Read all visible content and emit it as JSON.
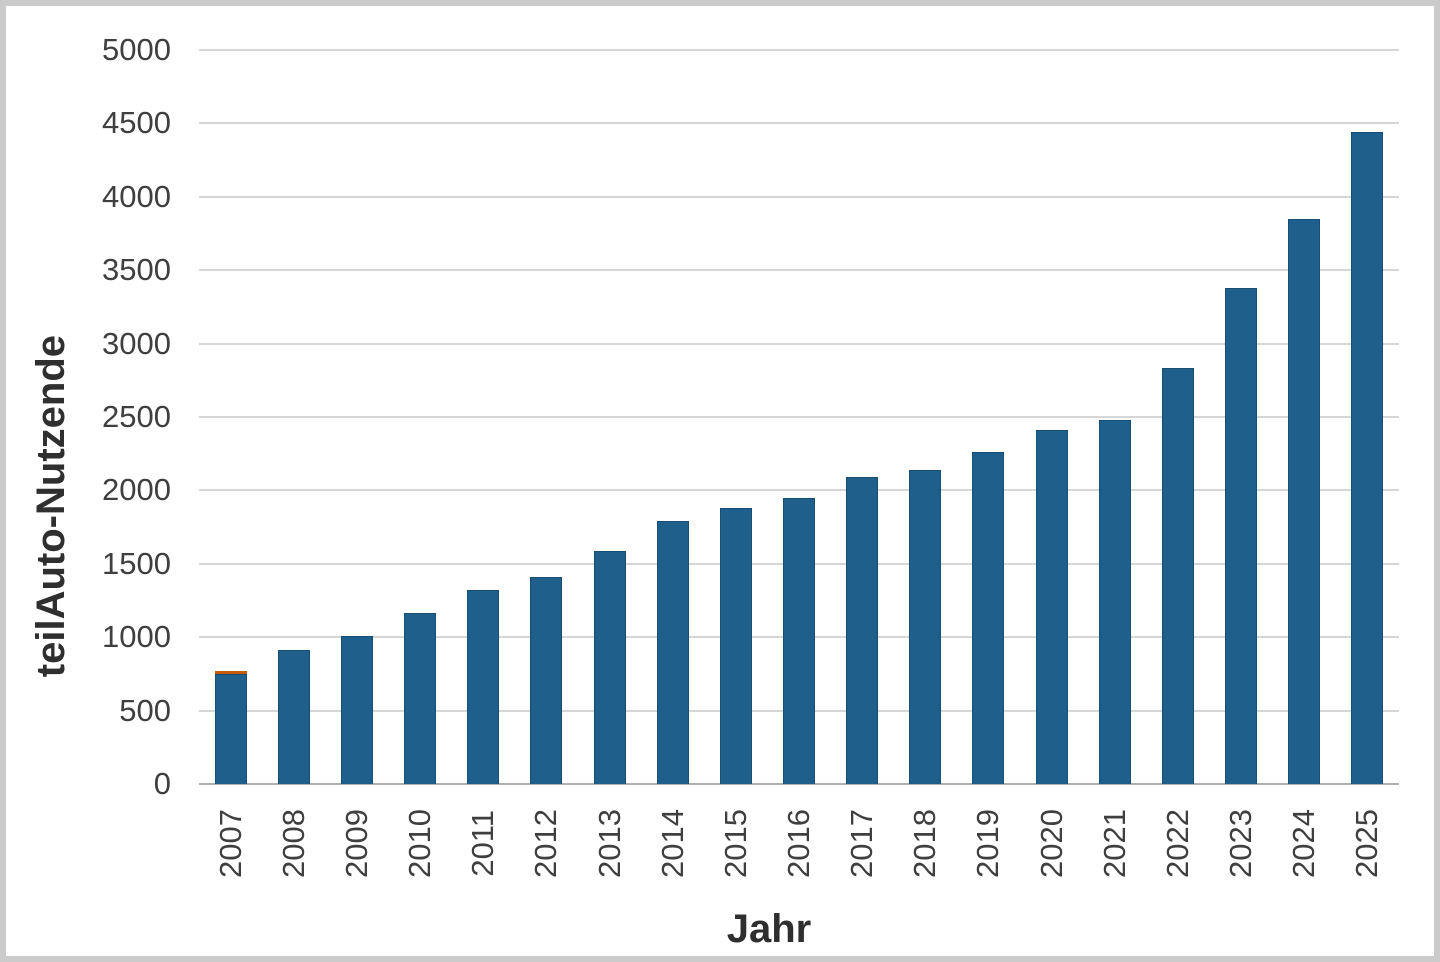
{
  "chart_data": {
    "type": "bar",
    "title": "",
    "xlabel": "Jahr",
    "ylabel": "teilAuto-Nutzende",
    "categories": [
      "2007",
      "2008",
      "2009",
      "2010",
      "2011",
      "2012",
      "2013",
      "2014",
      "2015",
      "2016",
      "2017",
      "2018",
      "2019",
      "2020",
      "2021",
      "2022",
      "2023",
      "2024",
      "2025"
    ],
    "series": [
      {
        "name": "primary",
        "color": "#1F5F8B",
        "values": [
          750,
          915,
          1010,
          1165,
          1320,
          1410,
          1590,
          1790,
          1880,
          1950,
          2090,
          2140,
          2260,
          2410,
          2480,
          2835,
          3380,
          3850,
          4440
        ]
      },
      {
        "name": "orange-cap",
        "color": "#C55A11",
        "values": [
          20,
          0,
          0,
          0,
          0,
          0,
          0,
          0,
          0,
          0,
          0,
          0,
          0,
          0,
          0,
          0,
          0,
          0,
          0
        ]
      }
    ],
    "stacked": true,
    "ylim": [
      0,
      5000
    ],
    "ytick_step": 500,
    "yticks": [
      "0",
      "500",
      "1000",
      "1500",
      "2000",
      "2500",
      "3000",
      "3500",
      "4000",
      "4500",
      "5000"
    ],
    "grid": true,
    "legend_position": "none"
  },
  "colors": {
    "bar": "#1F5F8B",
    "bar_accent": "#C55A11",
    "gridline": "#D6D6D6",
    "axis_line": "#B0B0B0",
    "tick_text": "#3F3F3F",
    "title_text": "#2F2F2F",
    "frame_border": "#CBCBCB",
    "background": "#FFFFFF"
  }
}
